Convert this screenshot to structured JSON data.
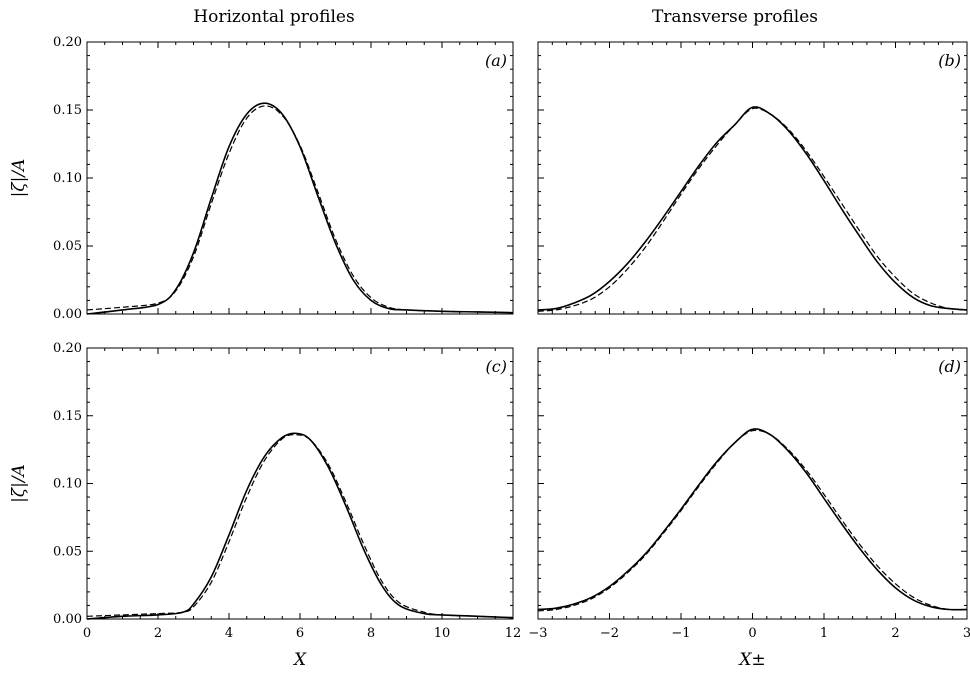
{
  "figure": {
    "column_titles": [
      "Horizontal profiles",
      "Transverse profiles"
    ]
  },
  "chart_data": [
    {
      "type": "line",
      "panel": "(a)",
      "ylabel": "|ζ|/A",
      "xlabel": "",
      "xlim": [
        0,
        12
      ],
      "ylim": [
        0,
        0.2
      ],
      "xticks": [],
      "xtick_labels": [],
      "yticks": [
        0,
        0.05,
        0.1,
        0.15,
        0.2
      ],
      "ytick_labels": [
        "0.00",
        "0.05",
        "0.10",
        "0.15",
        "0.20"
      ],
      "series": [
        {
          "style": "solid",
          "x": [
            0,
            1,
            2,
            2.5,
            3,
            3.5,
            4,
            4.5,
            5,
            5.5,
            6,
            6.5,
            7,
            7.5,
            8,
            8.5,
            9,
            10,
            11,
            12
          ],
          "y": [
            0.0,
            0.003,
            0.007,
            0.018,
            0.045,
            0.085,
            0.123,
            0.147,
            0.155,
            0.147,
            0.123,
            0.087,
            0.052,
            0.025,
            0.01,
            0.004,
            0.003,
            0.002,
            0.0015,
            0.001
          ]
        },
        {
          "style": "dashed",
          "x": [
            0,
            1,
            2,
            2.5,
            3,
            3.5,
            4,
            4.5,
            5,
            5.5,
            6,
            6.5,
            7,
            7.5,
            8,
            8.5,
            9,
            10,
            11,
            12
          ],
          "y": [
            0.003,
            0.005,
            0.008,
            0.017,
            0.042,
            0.081,
            0.118,
            0.144,
            0.153,
            0.146,
            0.124,
            0.09,
            0.055,
            0.028,
            0.012,
            0.005,
            0.003,
            0.002,
            0.0015,
            0.001
          ]
        }
      ]
    },
    {
      "type": "line",
      "panel": "(b)",
      "ylabel": "",
      "xlabel": "",
      "xlim": [
        -3,
        3
      ],
      "ylim": [
        0,
        0.2
      ],
      "xticks": [],
      "xtick_labels": [],
      "yticks": [],
      "ytick_labels": [],
      "series": [
        {
          "style": "solid",
          "x": [
            -3,
            -2.75,
            -2.5,
            -2.25,
            -2,
            -1.75,
            -1.5,
            -1.25,
            -1,
            -0.75,
            -0.5,
            -0.25,
            0,
            0.25,
            0.5,
            0.75,
            1,
            1.25,
            1.5,
            1.75,
            2,
            2.25,
            2.5,
            2.75,
            3
          ],
          "y": [
            0.003,
            0.004,
            0.008,
            0.014,
            0.024,
            0.037,
            0.053,
            0.071,
            0.09,
            0.109,
            0.126,
            0.139,
            0.152,
            0.147,
            0.135,
            0.118,
            0.098,
            0.077,
            0.057,
            0.038,
            0.023,
            0.012,
            0.006,
            0.004,
            0.003
          ]
        },
        {
          "style": "dashed",
          "x": [
            -3,
            -2.75,
            -2.5,
            -2.25,
            -2,
            -1.75,
            -1.5,
            -1.25,
            -1,
            -0.75,
            -0.5,
            -0.25,
            0,
            0.25,
            0.5,
            0.75,
            1,
            1.25,
            1.5,
            1.75,
            2,
            2.25,
            2.5,
            2.75,
            3
          ],
          "y": [
            0.002,
            0.003,
            0.006,
            0.011,
            0.02,
            0.033,
            0.049,
            0.068,
            0.088,
            0.107,
            0.124,
            0.139,
            0.151,
            0.147,
            0.136,
            0.12,
            0.101,
            0.081,
            0.061,
            0.042,
            0.027,
            0.015,
            0.008,
            0.004,
            0.003
          ]
        }
      ]
    },
    {
      "type": "line",
      "panel": "(c)",
      "ylabel": "|ζ|/A",
      "xlabel": "X",
      "xlim": [
        0,
        12
      ],
      "ylim": [
        0,
        0.2
      ],
      "xticks": [
        0,
        2,
        4,
        6,
        8,
        10,
        12
      ],
      "xtick_labels": [
        "0",
        "2",
        "4",
        "6",
        "8",
        "10",
        "12"
      ],
      "yticks": [
        0,
        0.05,
        0.1,
        0.15,
        0.2
      ],
      "ytick_labels": [
        "0.00",
        "0.05",
        "0.10",
        "0.15",
        "0.20"
      ],
      "series": [
        {
          "style": "solid",
          "x": [
            0,
            1,
            2,
            2.7,
            3,
            3.5,
            4,
            4.5,
            5,
            5.5,
            5.9,
            6.3,
            6.8,
            7.3,
            7.8,
            8.3,
            8.8,
            9.5,
            10,
            11,
            12
          ],
          "y": [
            0.0,
            0.002,
            0.003,
            0.005,
            0.011,
            0.031,
            0.062,
            0.095,
            0.12,
            0.134,
            0.137,
            0.132,
            0.112,
            0.083,
            0.051,
            0.025,
            0.01,
            0.004,
            0.003,
            0.002,
            0.001
          ]
        },
        {
          "style": "dashed",
          "x": [
            0,
            1,
            2,
            2.7,
            3,
            3.5,
            4,
            4.5,
            5,
            5.5,
            5.9,
            6.3,
            6.8,
            7.3,
            7.8,
            8.3,
            8.8,
            9.5,
            10,
            11,
            12
          ],
          "y": [
            0.002,
            0.003,
            0.004,
            0.005,
            0.009,
            0.027,
            0.057,
            0.09,
            0.117,
            0.133,
            0.136,
            0.132,
            0.114,
            0.086,
            0.055,
            0.028,
            0.012,
            0.005,
            0.003,
            0.002,
            0.001
          ]
        }
      ]
    },
    {
      "type": "line",
      "panel": "(d)",
      "ylabel": "",
      "xlabel": "X±",
      "xlim": [
        -3,
        3
      ],
      "ylim": [
        0,
        0.2
      ],
      "xticks": [
        -3,
        -2,
        -1,
        0,
        1,
        2,
        3
      ],
      "xtick_labels": [
        "−3",
        "−2",
        "−1",
        "0",
        "1",
        "2",
        "3"
      ],
      "yticks": [],
      "ytick_labels": [],
      "series": [
        {
          "style": "solid",
          "x": [
            -3,
            -2.75,
            -2.5,
            -2.25,
            -2,
            -1.75,
            -1.5,
            -1.25,
            -1,
            -0.75,
            -0.5,
            -0.25,
            0,
            0.25,
            0.5,
            0.75,
            1,
            1.25,
            1.5,
            1.75,
            2,
            2.25,
            2.5,
            2.75,
            3
          ],
          "y": [
            0.007,
            0.008,
            0.011,
            0.016,
            0.024,
            0.035,
            0.048,
            0.064,
            0.081,
            0.099,
            0.116,
            0.13,
            0.14,
            0.136,
            0.124,
            0.108,
            0.089,
            0.07,
            0.052,
            0.036,
            0.023,
            0.014,
            0.009,
            0.007,
            0.007
          ]
        },
        {
          "style": "dashed",
          "x": [
            -3,
            -2.75,
            -2.5,
            -2.25,
            -2,
            -1.75,
            -1.5,
            -1.25,
            -1,
            -0.75,
            -0.5,
            -0.25,
            0,
            0.25,
            0.5,
            0.75,
            1,
            1.25,
            1.5,
            1.75,
            2,
            2.25,
            2.5,
            2.75,
            3
          ],
          "y": [
            0.006,
            0.007,
            0.01,
            0.015,
            0.023,
            0.034,
            0.047,
            0.063,
            0.08,
            0.098,
            0.115,
            0.13,
            0.139,
            0.136,
            0.125,
            0.11,
            0.092,
            0.073,
            0.055,
            0.039,
            0.026,
            0.016,
            0.01,
            0.007,
            0.007
          ]
        }
      ]
    }
  ]
}
